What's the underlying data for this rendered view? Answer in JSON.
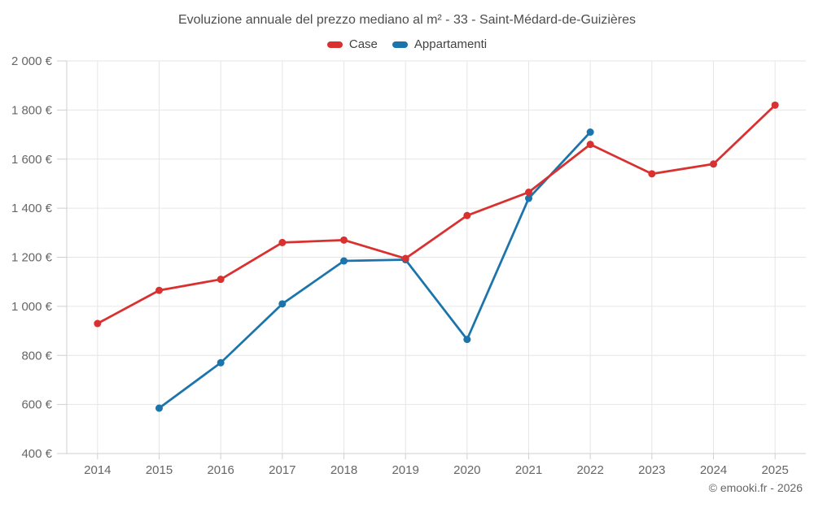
{
  "header": {
    "title": "Evoluzione annuale del prezzo mediano al m² - 33 - Saint-Médard-de-Guizières"
  },
  "footer": {
    "credit": "© emooki.fr - 2026"
  },
  "chart_data": {
    "type": "line",
    "title": "Evoluzione annuale del prezzo mediano al m² - 33 - Saint-Médard-de-Guizières",
    "categories": [
      "2014",
      "2015",
      "2016",
      "2017",
      "2018",
      "2019",
      "2020",
      "2021",
      "2022",
      "2023",
      "2024",
      "2025"
    ],
    "series": [
      {
        "name": "Case",
        "color": "#d93030",
        "values": [
          930,
          1065,
          1110,
          1260,
          1270,
          1195,
          1370,
          1465,
          1660,
          1540,
          1580,
          1820
        ]
      },
      {
        "name": "Appartamenti",
        "color": "#1b74ab",
        "values": [
          null,
          585,
          770,
          1010,
          1185,
          1190,
          865,
          1440,
          1710,
          null,
          null,
          null
        ]
      }
    ],
    "ylim": [
      400,
      2000
    ],
    "y_ticks": [
      400,
      600,
      800,
      1000,
      1200,
      1400,
      1600,
      1800,
      2000
    ],
    "y_tick_labels": [
      "400 €",
      "600 €",
      "800 €",
      "1 000 €",
      "1 200 €",
      "1 400 €",
      "1 600 €",
      "1 800 €",
      "2 000 €"
    ],
    "xlabel": "",
    "ylabel": "",
    "grid": true,
    "legend_position": "top",
    "grid_color": "#e6e6e6",
    "axis_line_color": "#cfcfcf",
    "tick_label_color": "#666666"
  }
}
